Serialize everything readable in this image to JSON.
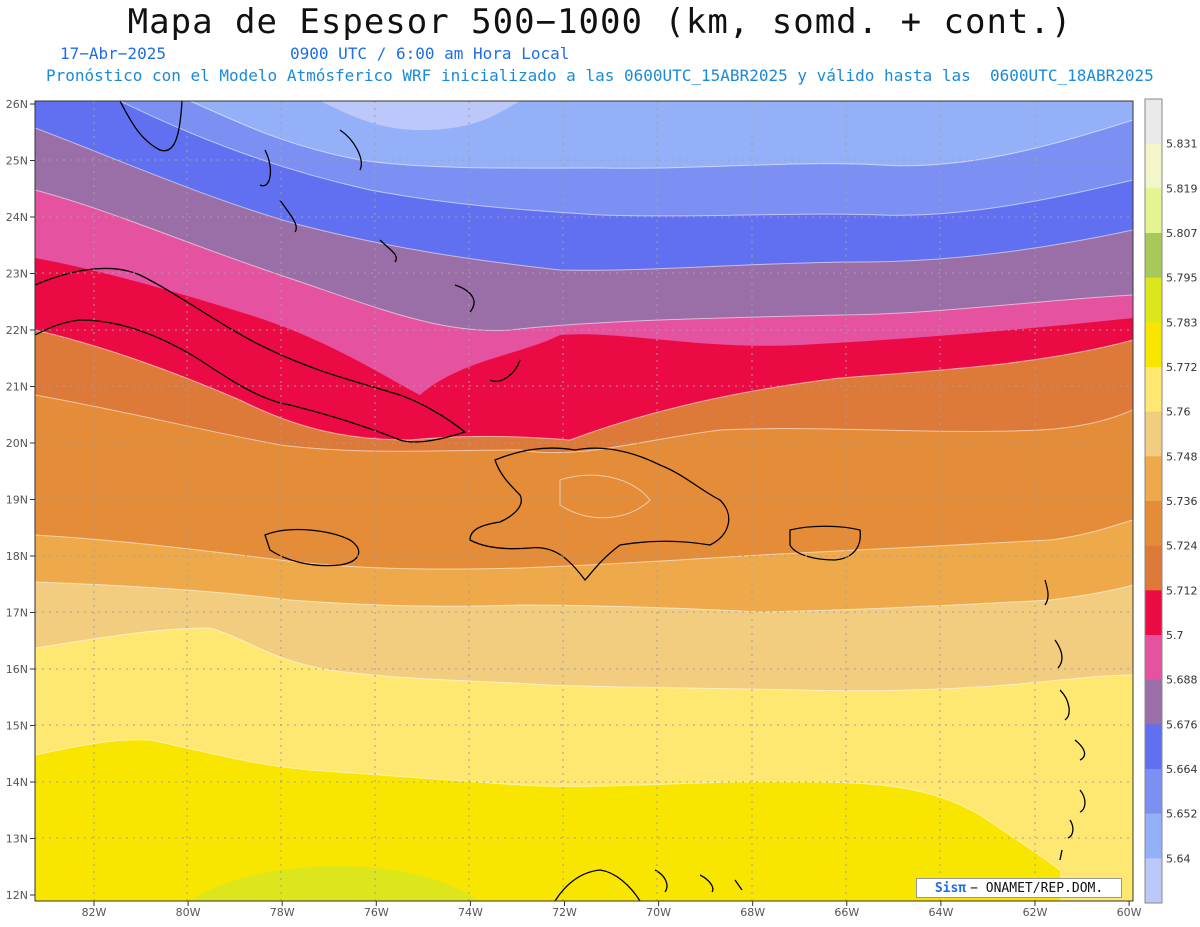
{
  "header": {
    "title": "Mapa de Espesor 500−1000 (km, somd. + cont.)",
    "date": "17−Abr−2025",
    "time": "0900 UTC / 6:00 am Hora Local",
    "forecast": "Pronóstico con el Modelo Atmósferico WRF inicializado a las 0600UTC_15ABR2025 y válido hasta las  0600UTC_18ABR2025"
  },
  "map": {
    "lat_ticks": [
      "26N",
      "25N",
      "24N",
      "23N",
      "22N",
      "21N",
      "20N",
      "19N",
      "18N",
      "17N",
      "16N",
      "15N",
      "14N",
      "13N",
      "12N"
    ],
    "lon_ticks": [
      "82W",
      "80W",
      "78W",
      "76W",
      "74W",
      "72W",
      "70W",
      "68W",
      "66W",
      "64W",
      "62W",
      "60W"
    ],
    "credit_logo": "Sisπ",
    "credit_text": "− ONAMET/REP.DOM."
  },
  "colorbar": {
    "labels": [
      "5.831",
      "5.819",
      "5.807",
      "5.795",
      "5.783",
      "5.772",
      "5.76",
      "5.748",
      "5.736",
      "5.724",
      "5.712",
      "5.7",
      "5.688",
      "5.676",
      "5.664",
      "5.652",
      "5.64"
    ],
    "colors_top_to_bottom": [
      "#eaeaea",
      "#f2f6c8",
      "#e4f490",
      "#a8c85a",
      "#dde61c",
      "#f8e600",
      "#fee872",
      "#f2cd80",
      "#eeaa4a",
      "#e58c38",
      "#dd7a3a",
      "#ec0a44",
      "#e452a0",
      "#9a6ea6",
      "#6070f0",
      "#7c90f4",
      "#94b0f8",
      "#bcc8fa"
    ]
  },
  "bands": [
    {
      "id": "band-5.64",
      "color": "#bcc8fa"
    },
    {
      "id": "band-5.652",
      "color": "#94b0f8"
    },
    {
      "id": "band-5.664",
      "color": "#7c90f4"
    },
    {
      "id": "band-5.676",
      "color": "#6070f0"
    },
    {
      "id": "band-5.688",
      "color": "#9a6ea6"
    },
    {
      "id": "band-5.7",
      "color": "#e452a0"
    },
    {
      "id": "band-5.712",
      "color": "#ec0a44"
    },
    {
      "id": "band-5.724",
      "color": "#dd7a3a"
    },
    {
      "id": "band-5.736",
      "color": "#e58c38"
    },
    {
      "id": "band-5.748",
      "color": "#eeaa4a"
    },
    {
      "id": "band-5.76",
      "color": "#f2cd80"
    },
    {
      "id": "band-5.772",
      "color": "#fee872"
    },
    {
      "id": "band-5.783",
      "color": "#f8e600"
    },
    {
      "id": "band-5.795",
      "color": "#dde61c"
    }
  ]
}
